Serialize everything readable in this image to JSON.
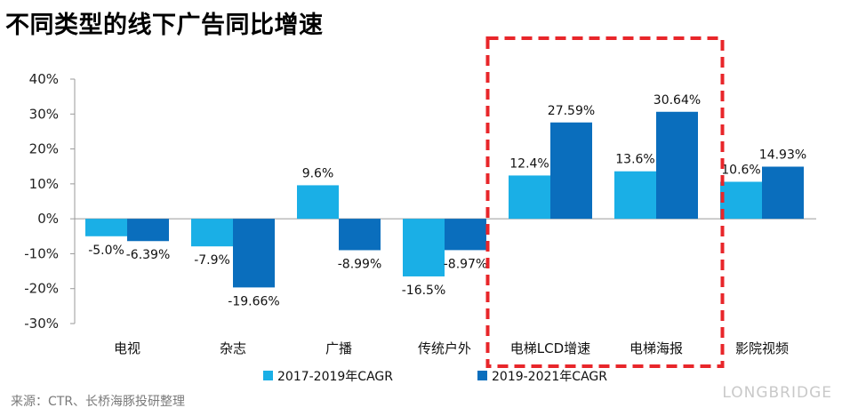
{
  "header": {
    "title": "不同类型的线下广告同比增速"
  },
  "footer": {
    "source": "来源：CTR、长桥海豚投研整理"
  },
  "watermark": {
    "text": "LONGBRIDGE"
  },
  "colors": {
    "series_2017_2019": "#1AAFE6",
    "series_2019_2021": "#0A6EBD",
    "highlight_box": "#E8262A"
  },
  "chart_data": {
    "type": "bar",
    "title": "不同类型的线下广告同比增速",
    "categories": [
      "电视",
      "杂志",
      "广播",
      "传统户外",
      "电梯LCD增速",
      "电梯海报",
      "影院视频"
    ],
    "series": [
      {
        "name": "2017-2019年CAGR",
        "values": [
          -5.0,
          -7.9,
          9.6,
          -16.5,
          12.4,
          13.6,
          10.6
        ],
        "labels": [
          "-5.0%",
          "-7.9%",
          "9.6%",
          "-16.5%",
          "12.4%",
          "13.6%",
          "10.6%"
        ]
      },
      {
        "name": "2019-2021年CAGR",
        "values": [
          -6.39,
          -19.66,
          -8.99,
          -8.97,
          27.59,
          30.64,
          14.93
        ],
        "labels": [
          "-6.39%",
          "-19.66%",
          "-8.99%",
          "-8.97%",
          "27.59%",
          "30.64%",
          "14.93%"
        ]
      }
    ],
    "ylim": [
      -30,
      40
    ],
    "yticks": [
      40,
      30,
      20,
      10,
      0,
      -10,
      -20,
      -30
    ],
    "ytick_labels": [
      "40%",
      "30%",
      "20%",
      "10%",
      "0%",
      "-10%",
      "-20%",
      "-30%"
    ],
    "grid": false,
    "legend_position": "bottom",
    "highlight_categories": [
      "电梯LCD增速",
      "电梯海报"
    ]
  }
}
